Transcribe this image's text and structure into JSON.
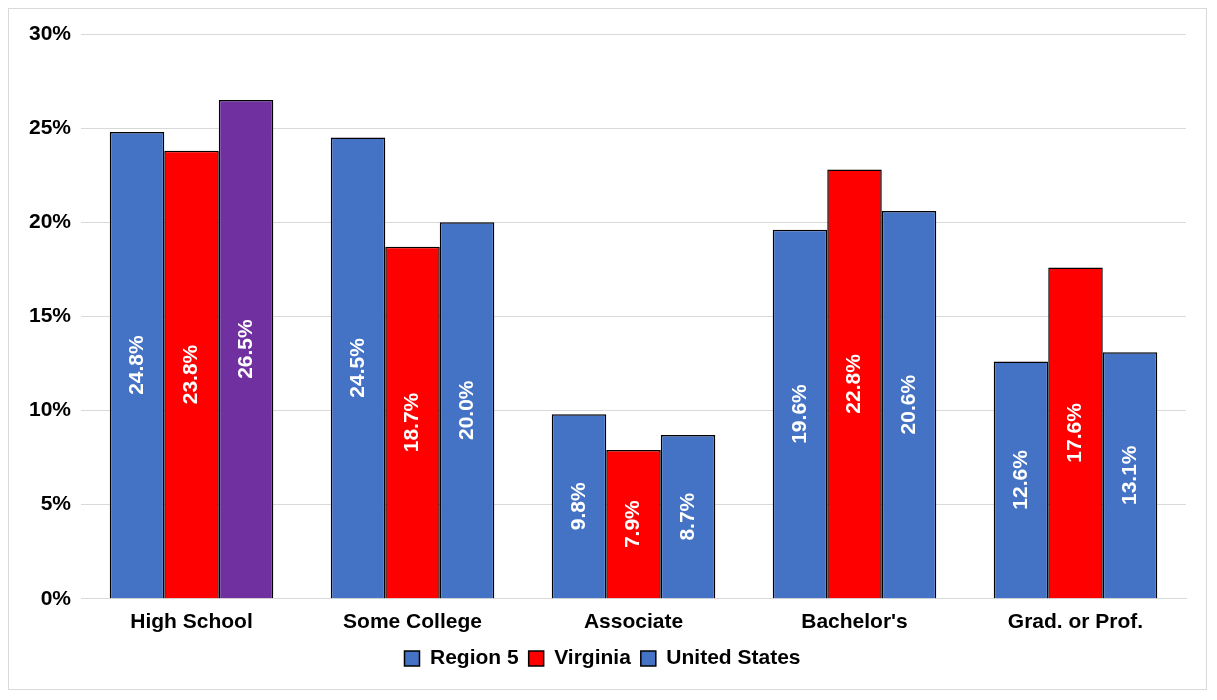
{
  "chart_data": {
    "type": "bar",
    "categories": [
      "High School",
      "Some College",
      "Associate",
      "Bachelor's",
      "Grad. or Prof."
    ],
    "series": [
      {
        "name": "Region 5",
        "color": "#4472c4",
        "values": [
          24.8,
          24.5,
          9.8,
          19.6,
          12.6
        ],
        "value_labels": [
          "24.8%",
          "24.5%",
          "9.8%",
          "19.6%",
          "12.6%"
        ]
      },
      {
        "name": "Virginia",
        "color": "#ff0000",
        "values": [
          23.8,
          18.7,
          7.9,
          22.8,
          17.6
        ],
        "value_labels": [
          "23.8%",
          "18.7%",
          "7.9%",
          "22.8%",
          "17.6%"
        ]
      },
      {
        "name": "United States",
        "color": "#4472c4",
        "colors": [
          "#7030a0",
          "#4472c4",
          "#4472c4",
          "#4472c4",
          "#4472c4"
        ],
        "values": [
          26.5,
          20.0,
          8.7,
          20.6,
          13.1
        ],
        "value_labels": [
          "26.5%",
          "20.0%",
          "8.7%",
          "20.6%",
          "13.1%"
        ]
      }
    ],
    "ylim": [
      0,
      30
    ],
    "yticks": [
      {
        "value": 0,
        "label": "0%"
      },
      {
        "value": 5,
        "label": "5%"
      },
      {
        "value": 10,
        "label": "10%"
      },
      {
        "value": 15,
        "label": "15%"
      },
      {
        "value": 20,
        "label": "20%"
      },
      {
        "value": 25,
        "label": "25%"
      },
      {
        "value": 30,
        "label": "30%"
      }
    ],
    "grid": "y",
    "legend": "bottom"
  }
}
